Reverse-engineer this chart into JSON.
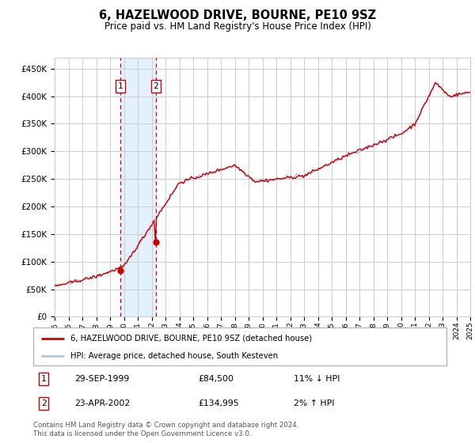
{
  "title": "6, HAZELWOOD DRIVE, BOURNE, PE10 9SZ",
  "subtitle": "Price paid vs. HM Land Registry's House Price Index (HPI)",
  "ylim": [
    0,
    470000
  ],
  "yticks": [
    0,
    50000,
    100000,
    150000,
    200000,
    250000,
    300000,
    350000,
    400000,
    450000
  ],
  "year_start": 1995,
  "year_end": 2025,
  "sale1_year": 1999.75,
  "sale1_price": 84500,
  "sale2_year": 2002.3,
  "sale2_price": 134995,
  "sale1_date": "29-SEP-1999",
  "sale1_amount": "£84,500",
  "sale1_hpi": "11% ↓ HPI",
  "sale2_date": "23-APR-2002",
  "sale2_amount": "£134,995",
  "sale2_hpi": "2% ↑ HPI",
  "hpi_color": "#aec6e8",
  "sale_color": "#cc0000",
  "span_color": "#ddeeff",
  "background_color": "#ffffff",
  "grid_color": "#cccccc",
  "legend_label_sale": "6, HAZELWOOD DRIVE, BOURNE, PE10 9SZ (detached house)",
  "legend_label_hpi": "HPI: Average price, detached house, South Kesteven",
  "footer": "Contains HM Land Registry data © Crown copyright and database right 2024.\nThis data is licensed under the Open Government Licence v3.0."
}
